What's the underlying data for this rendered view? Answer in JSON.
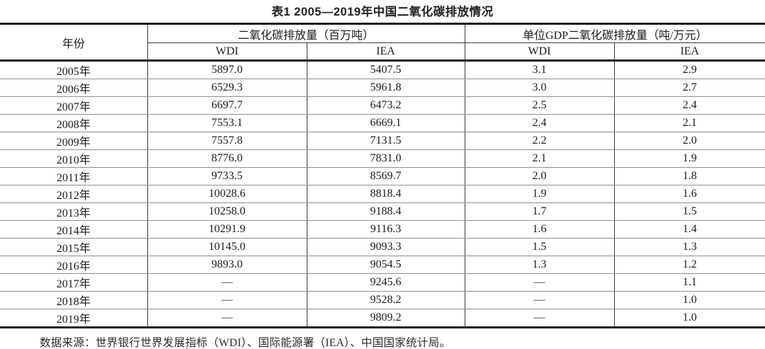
{
  "title": "表1 2005—2019年中国二氧化碳排放情况",
  "table": {
    "year_header": "年份",
    "group_headers": [
      {
        "label": "二氧化碳排放量（百万吨）"
      },
      {
        "label": "单位GDP二氧化碳排放量（吨/万元）"
      }
    ],
    "sub_headers": [
      "WDI",
      "IEA",
      "WDI",
      "IEA"
    ],
    "rows": [
      {
        "year": "2005年",
        "co2_wdi": "5897.0",
        "co2_iea": "5407.5",
        "gdp_wdi": "3.1",
        "gdp_iea": "2.9"
      },
      {
        "year": "2006年",
        "co2_wdi": "6529.3",
        "co2_iea": "5961.8",
        "gdp_wdi": "3.0",
        "gdp_iea": "2.7"
      },
      {
        "year": "2007年",
        "co2_wdi": "6697.7",
        "co2_iea": "6473.2",
        "gdp_wdi": "2.5",
        "gdp_iea": "2.4"
      },
      {
        "year": "2008年",
        "co2_wdi": "7553.1",
        "co2_iea": "6669.1",
        "gdp_wdi": "2.4",
        "gdp_iea": "2.1"
      },
      {
        "year": "2009年",
        "co2_wdi": "7557.8",
        "co2_iea": "7131.5",
        "gdp_wdi": "2.2",
        "gdp_iea": "2.0"
      },
      {
        "year": "2010年",
        "co2_wdi": "8776.0",
        "co2_iea": "7831.0",
        "gdp_wdi": "2.1",
        "gdp_iea": "1.9"
      },
      {
        "year": "2011年",
        "co2_wdi": "9733.5",
        "co2_iea": "8569.7",
        "gdp_wdi": "2.0",
        "gdp_iea": "1.8"
      },
      {
        "year": "2012年",
        "co2_wdi": "10028.6",
        "co2_iea": "8818.4",
        "gdp_wdi": "1.9",
        "gdp_iea": "1.6"
      },
      {
        "year": "2013年",
        "co2_wdi": "10258.0",
        "co2_iea": "9188.4",
        "gdp_wdi": "1.7",
        "gdp_iea": "1.5"
      },
      {
        "year": "2014年",
        "co2_wdi": "10291.9",
        "co2_iea": "9116.3",
        "gdp_wdi": "1.6",
        "gdp_iea": "1.4"
      },
      {
        "year": "2015年",
        "co2_wdi": "10145.0",
        "co2_iea": "9093.3",
        "gdp_wdi": "1.5",
        "gdp_iea": "1.3"
      },
      {
        "year": "2016年",
        "co2_wdi": "9893.0",
        "co2_iea": "9054.5",
        "gdp_wdi": "1.3",
        "gdp_iea": "1.2"
      },
      {
        "year": "2017年",
        "co2_wdi": "—",
        "co2_iea": "9245.6",
        "gdp_wdi": "—",
        "gdp_iea": "1.1"
      },
      {
        "year": "2018年",
        "co2_wdi": "—",
        "co2_iea": "9528.2",
        "gdp_wdi": "—",
        "gdp_iea": "1.0"
      },
      {
        "year": "2019年",
        "co2_wdi": "—",
        "co2_iea": "9809.2",
        "gdp_wdi": "—",
        "gdp_iea": "1.0"
      }
    ]
  },
  "footer": "数据来源：世界银行世界发展指标（WDI）、国际能源署（IEA）、中国国家统计局。",
  "colors": {
    "text": "#1c1c1c",
    "border_heavy": "#1a1a1a",
    "border_light": "#8f8f8f",
    "border_vertical": "#3a3a3a",
    "background": "#ffffff"
  }
}
